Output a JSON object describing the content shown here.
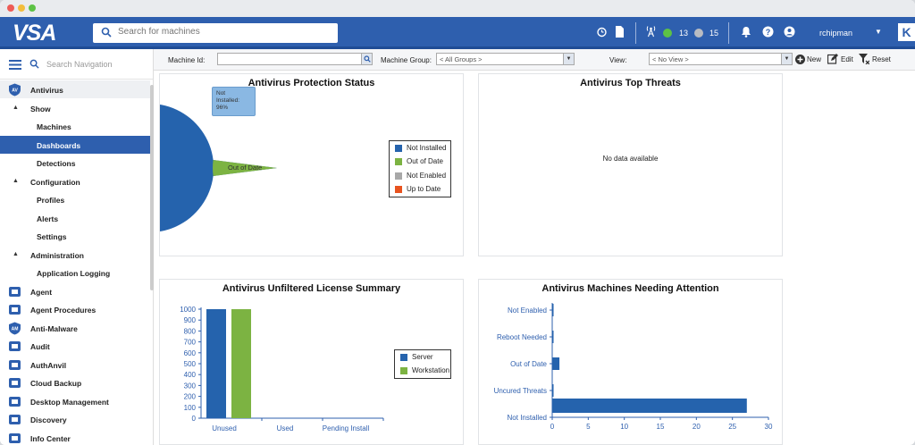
{
  "app": {
    "logo": "VSA",
    "search_placeholder": "Search for machines"
  },
  "topbar": {
    "count_green": "13",
    "count_gray": "15",
    "user": "rchipman",
    "brand_letter": "K"
  },
  "nav": {
    "search_placeholder": "Search Navigation",
    "items": [
      {
        "label": "Antivirus",
        "icon": "AV",
        "level": 0
      },
      {
        "label": "Show",
        "level": 1
      },
      {
        "label": "Machines",
        "level": 2
      },
      {
        "label": "Dashboards",
        "level": 2
      },
      {
        "label": "Detections",
        "level": 2
      },
      {
        "label": "Configuration",
        "level": 1
      },
      {
        "label": "Profiles",
        "level": 2
      },
      {
        "label": "Alerts",
        "level": 2
      },
      {
        "label": "Settings",
        "level": 2
      },
      {
        "label": "Administration",
        "level": 1
      },
      {
        "label": "Application Logging",
        "level": 2
      },
      {
        "label": "Agent",
        "level": 0
      },
      {
        "label": "Agent Procedures",
        "level": 0
      },
      {
        "label": "Anti-Malware",
        "icon": "AM",
        "level": 0
      },
      {
        "label": "Audit",
        "level": 0
      },
      {
        "label": "AuthAnvil",
        "level": 0
      },
      {
        "label": "Cloud Backup",
        "level": 0
      },
      {
        "label": "Desktop Management",
        "level": 0
      },
      {
        "label": "Discovery",
        "level": 0
      },
      {
        "label": "Info Center",
        "level": 0
      }
    ]
  },
  "filters": {
    "machine_id_label": "Machine Id:",
    "machine_group_label": "Machine Group:",
    "machine_group_value": "< All Groups >",
    "view_label": "View:",
    "view_value": "< No View >",
    "new_label": "New",
    "edit_label": "Edit",
    "reset_label": "Reset"
  },
  "panels": {
    "protection_status": {
      "title": "Antivirus Protection Status",
      "tooltip": {
        "line1": "Not",
        "line2": "Installed:",
        "line3": "96%"
      },
      "slice_label_main": "Not Installed",
      "slice_label_small": "Out of Date",
      "legend": [
        "Not Installed",
        "Out of Date",
        "Not Enabled",
        "Up to Date"
      ]
    },
    "top_threats": {
      "title": "Antivirus Top Threats",
      "empty": "No data available"
    },
    "license_summary": {
      "title": "Antivirus Unfiltered License Summary",
      "legend": [
        "Server",
        "Workstation"
      ]
    },
    "needing_attention": {
      "title": "Antivirus Machines Needing Attention"
    }
  },
  "colors": {
    "blue": "#2563ad",
    "green": "#7cb342",
    "gray": "#a8a8a8",
    "orange": "#e8531f"
  },
  "chart_data": [
    {
      "type": "pie",
      "title": "Antivirus Protection Status",
      "categories": [
        "Not Installed",
        "Out of Date",
        "Not Enabled",
        "Up to Date"
      ],
      "values": [
        96,
        4,
        0,
        0
      ]
    },
    {
      "type": "bar",
      "title": "Antivirus Unfiltered License Summary",
      "categories": [
        "Unused",
        "Used",
        "Pending Install"
      ],
      "series": [
        {
          "name": "Server",
          "values": [
            1000,
            0,
            0
          ]
        },
        {
          "name": "Workstation",
          "values": [
            1000,
            0,
            0
          ]
        }
      ],
      "yticks": [
        "0",
        "100",
        "200",
        "300",
        "400",
        "500",
        "600",
        "700",
        "800",
        "900",
        "1000"
      ],
      "ylim": [
        0,
        1000
      ]
    },
    {
      "type": "bar",
      "orientation": "horizontal",
      "title": "Antivirus Machines Needing Attention",
      "categories": [
        "Not Enabled",
        "Reboot Needed",
        "Out of Date",
        "Uncured Threats",
        "Not Installed"
      ],
      "values": [
        0,
        0,
        1,
        0,
        27
      ],
      "xticks": [
        "0",
        "5",
        "10",
        "15",
        "20",
        "25",
        "30"
      ],
      "xlim": [
        0,
        30
      ]
    }
  ]
}
